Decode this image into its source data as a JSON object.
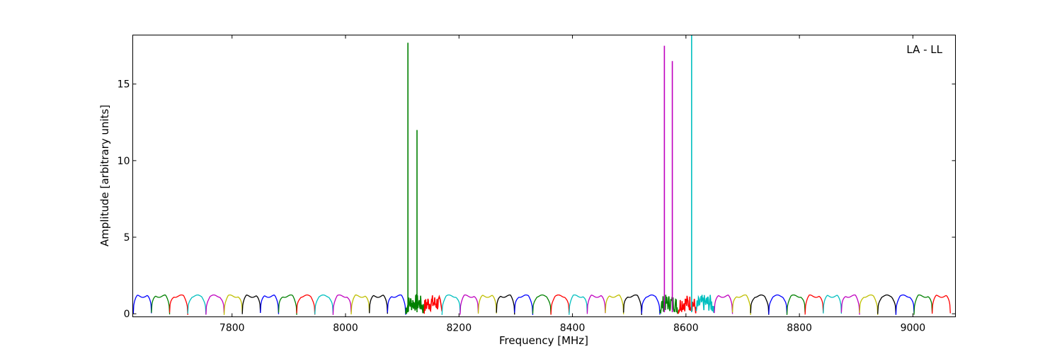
{
  "chart_data": {
    "type": "line",
    "xlabel": "Frequency [MHz]",
    "ylabel": "Amplitude [arbitrary units]",
    "annotation": "LA - LL",
    "xlim": [
      7625,
      9075
    ],
    "ylim": [
      -0.2,
      18.2
    ],
    "xticks": [
      7800,
      8000,
      8200,
      8400,
      8600,
      8800,
      9000
    ],
    "yticks": [
      0,
      5,
      10,
      15
    ],
    "grid": false,
    "legend": "none",
    "colors": [
      "#0000ff",
      "#008000",
      "#ff0000",
      "#00bfbf",
      "#bf00bf",
      "#bfbf00",
      "#000000"
    ],
    "channel_width_mhz": 32,
    "channel_start_mhz": 7626,
    "channel_count": 45,
    "spikes": [
      {
        "x": 8110,
        "y": 17.7,
        "color": "#008000"
      },
      {
        "x": 8126,
        "y": 12.0,
        "color": "#008000"
      },
      {
        "x": 8562,
        "y": 17.5,
        "color": "#bf00bf"
      },
      {
        "x": 8576,
        "y": 16.5,
        "color": "#bf00bf"
      },
      {
        "x": 8610,
        "y": 18.2,
        "color": "#00bfbf"
      }
    ]
  }
}
